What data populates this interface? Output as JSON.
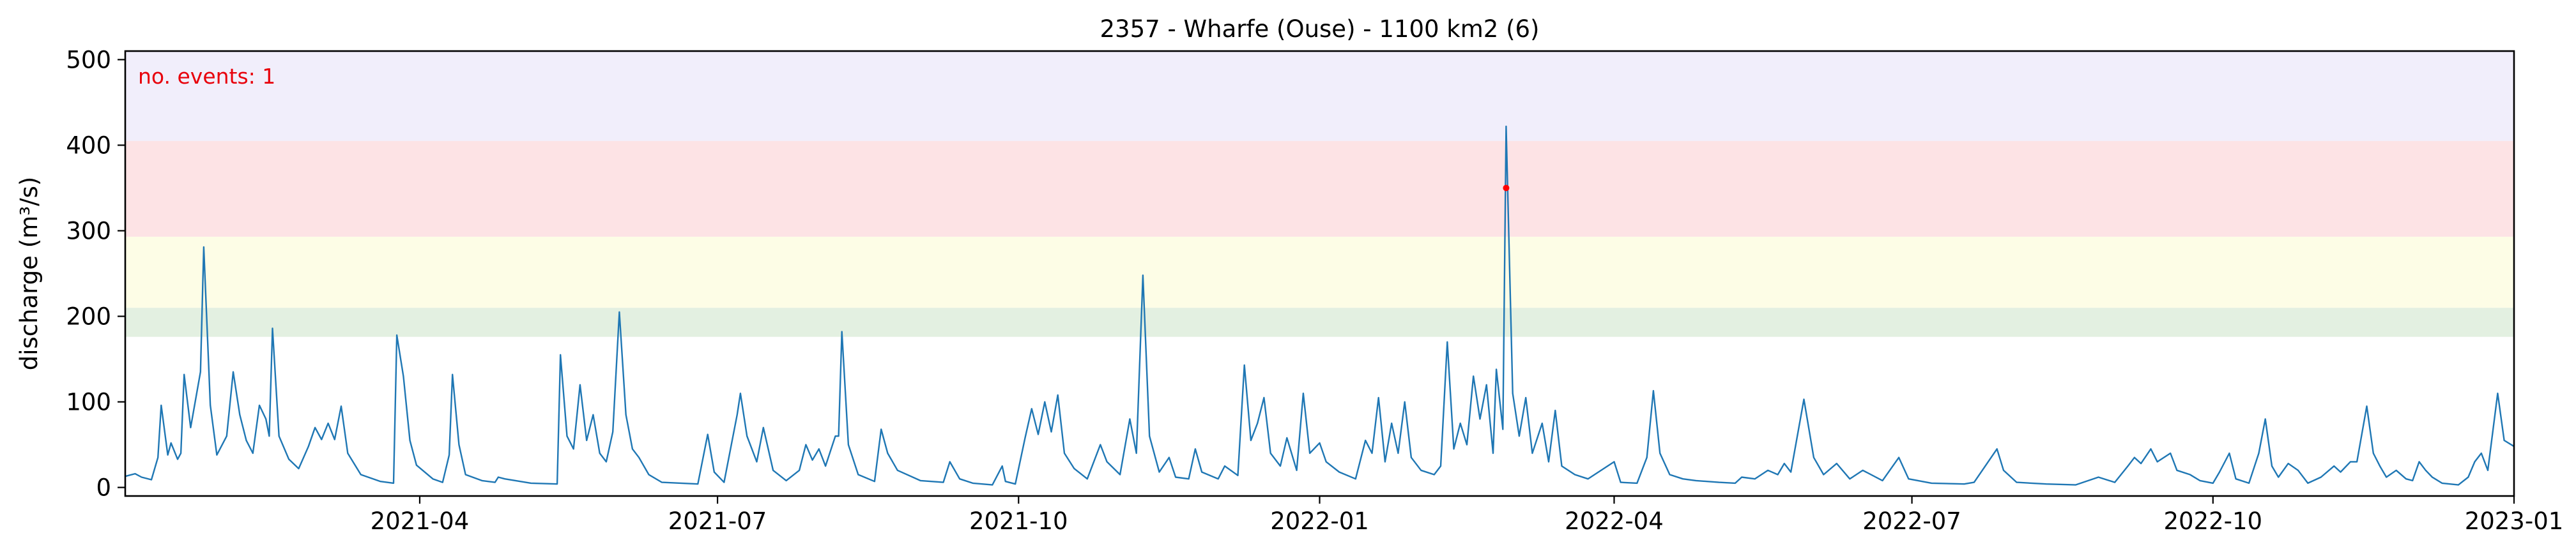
{
  "chart_data": {
    "type": "line",
    "title": "2357 - Wharfe (Ouse) - 1100 km2 (6)",
    "xlabel": "",
    "ylabel": "discharge (m³/s)",
    "xlim": [
      "2021-01-01",
      "2023-01-01"
    ],
    "ylim": [
      -10,
      510
    ],
    "x_ticks": [
      "2021-04",
      "2021-07",
      "2021-10",
      "2022-01",
      "2022-04",
      "2022-07",
      "2022-10",
      "2023-01"
    ],
    "y_ticks": [
      0,
      100,
      200,
      300,
      400,
      500
    ],
    "grid": false,
    "annotation": "no. events: 1",
    "bands": [
      {
        "from": 176,
        "to": 210,
        "color": "#e3f0e1"
      },
      {
        "from": 210,
        "to": 293,
        "color": "#fdfde6"
      },
      {
        "from": 293,
        "to": 405,
        "color": "#fde3e5"
      },
      {
        "from": 405,
        "to": 510,
        "color": "#f1eefb"
      }
    ],
    "series": [
      {
        "color": "#1f77b4",
        "points": [
          [
            "2021-01-01",
            13
          ],
          [
            "2021-01-04",
            16
          ],
          [
            "2021-01-06",
            12
          ],
          [
            "2021-01-09",
            9
          ],
          [
            "2021-01-11",
            35
          ],
          [
            "2021-01-12",
            96
          ],
          [
            "2021-01-14",
            38
          ],
          [
            "2021-01-15",
            52
          ],
          [
            "2021-01-17",
            33
          ],
          [
            "2021-01-18",
            40
          ],
          [
            "2021-01-19",
            132
          ],
          [
            "2021-01-21",
            70
          ],
          [
            "2021-01-24",
            135
          ],
          [
            "2021-01-25",
            281
          ],
          [
            "2021-01-27",
            96
          ],
          [
            "2021-01-29",
            38
          ],
          [
            "2021-02-01",
            60
          ],
          [
            "2021-02-03",
            135
          ],
          [
            "2021-02-05",
            85
          ],
          [
            "2021-02-07",
            55
          ],
          [
            "2021-02-09",
            40
          ],
          [
            "2021-02-11",
            96
          ],
          [
            "2021-02-13",
            80
          ],
          [
            "2021-02-14",
            60
          ],
          [
            "2021-02-15",
            186
          ],
          [
            "2021-02-17",
            60
          ],
          [
            "2021-02-20",
            33
          ],
          [
            "2021-02-23",
            22
          ],
          [
            "2021-02-26",
            48
          ],
          [
            "2021-02-28",
            70
          ],
          [
            "2021-03-02",
            56
          ],
          [
            "2021-03-04",
            75
          ],
          [
            "2021-03-06",
            56
          ],
          [
            "2021-03-08",
            95
          ],
          [
            "2021-03-10",
            40
          ],
          [
            "2021-03-14",
            15
          ],
          [
            "2021-03-20",
            7
          ],
          [
            "2021-03-24",
            5
          ],
          [
            "2021-03-25",
            178
          ],
          [
            "2021-03-27",
            130
          ],
          [
            "2021-03-29",
            55
          ],
          [
            "2021-03-31",
            26
          ],
          [
            "2021-04-05",
            10
          ],
          [
            "2021-04-08",
            6
          ],
          [
            "2021-04-10",
            38
          ],
          [
            "2021-04-11",
            132
          ],
          [
            "2021-04-13",
            50
          ],
          [
            "2021-04-15",
            15
          ],
          [
            "2021-04-20",
            8
          ],
          [
            "2021-04-24",
            6
          ],
          [
            "2021-04-25",
            12
          ],
          [
            "2021-04-27",
            10
          ],
          [
            "2021-05-05",
            5
          ],
          [
            "2021-05-13",
            4
          ],
          [
            "2021-05-14",
            155
          ],
          [
            "2021-05-16",
            60
          ],
          [
            "2021-05-18",
            45
          ],
          [
            "2021-05-20",
            120
          ],
          [
            "2021-05-22",
            55
          ],
          [
            "2021-05-24",
            85
          ],
          [
            "2021-05-26",
            40
          ],
          [
            "2021-05-28",
            30
          ],
          [
            "2021-05-30",
            65
          ],
          [
            "2021-06-01",
            205
          ],
          [
            "2021-06-03",
            85
          ],
          [
            "2021-06-05",
            45
          ],
          [
            "2021-06-07",
            35
          ],
          [
            "2021-06-10",
            15
          ],
          [
            "2021-06-14",
            6
          ],
          [
            "2021-06-25",
            4
          ],
          [
            "2021-06-28",
            62
          ],
          [
            "2021-06-30",
            18
          ],
          [
            "2021-07-03",
            6
          ],
          [
            "2021-07-07",
            85
          ],
          [
            "2021-07-08",
            110
          ],
          [
            "2021-07-10",
            60
          ],
          [
            "2021-07-13",
            30
          ],
          [
            "2021-07-15",
            70
          ],
          [
            "2021-07-18",
            20
          ],
          [
            "2021-07-22",
            8
          ],
          [
            "2021-07-26",
            20
          ],
          [
            "2021-07-28",
            50
          ],
          [
            "2021-07-30",
            32
          ],
          [
            "2021-08-01",
            45
          ],
          [
            "2021-08-03",
            25
          ],
          [
            "2021-08-06",
            60
          ],
          [
            "2021-08-07",
            60
          ],
          [
            "2021-08-08",
            182
          ],
          [
            "2021-08-10",
            50
          ],
          [
            "2021-08-13",
            15
          ],
          [
            "2021-08-18",
            7
          ],
          [
            "2021-08-20",
            68
          ],
          [
            "2021-08-22",
            40
          ],
          [
            "2021-08-25",
            20
          ],
          [
            "2021-09-01",
            8
          ],
          [
            "2021-09-08",
            6
          ],
          [
            "2021-09-10",
            30
          ],
          [
            "2021-09-13",
            10
          ],
          [
            "2021-09-17",
            5
          ],
          [
            "2021-09-23",
            3
          ],
          [
            "2021-09-26",
            25
          ],
          [
            "2021-09-27",
            7
          ],
          [
            "2021-09-30",
            4
          ],
          [
            "2021-10-03",
            58
          ],
          [
            "2021-10-05",
            92
          ],
          [
            "2021-10-07",
            62
          ],
          [
            "2021-10-09",
            100
          ],
          [
            "2021-10-11",
            65
          ],
          [
            "2021-10-13",
            108
          ],
          [
            "2021-10-15",
            40
          ],
          [
            "2021-10-18",
            22
          ],
          [
            "2021-10-22",
            10
          ],
          [
            "2021-10-26",
            50
          ],
          [
            "2021-10-28",
            30
          ],
          [
            "2021-11-01",
            15
          ],
          [
            "2021-11-04",
            80
          ],
          [
            "2021-11-06",
            40
          ],
          [
            "2021-11-08",
            248
          ],
          [
            "2021-11-10",
            60
          ],
          [
            "2021-11-13",
            18
          ],
          [
            "2021-11-16",
            35
          ],
          [
            "2021-11-18",
            12
          ],
          [
            "2021-11-22",
            10
          ],
          [
            "2021-11-24",
            45
          ],
          [
            "2021-11-26",
            18
          ],
          [
            "2021-12-01",
            10
          ],
          [
            "2021-12-03",
            25
          ],
          [
            "2021-12-07",
            14
          ],
          [
            "2021-12-09",
            143
          ],
          [
            "2021-12-11",
            55
          ],
          [
            "2021-12-13",
            75
          ],
          [
            "2021-12-15",
            105
          ],
          [
            "2021-12-17",
            40
          ],
          [
            "2021-12-20",
            25
          ],
          [
            "2021-12-22",
            58
          ],
          [
            "2021-12-25",
            20
          ],
          [
            "2021-12-27",
            110
          ],
          [
            "2021-12-29",
            40
          ],
          [
            "2022-01-01",
            52
          ],
          [
            "2022-01-03",
            30
          ],
          [
            "2022-01-07",
            18
          ],
          [
            "2022-01-12",
            10
          ],
          [
            "2022-01-15",
            55
          ],
          [
            "2022-01-17",
            40
          ],
          [
            "2022-01-19",
            105
          ],
          [
            "2022-01-21",
            30
          ],
          [
            "2022-01-23",
            75
          ],
          [
            "2022-01-25",
            40
          ],
          [
            "2022-01-27",
            100
          ],
          [
            "2022-01-29",
            35
          ],
          [
            "2022-02-01",
            20
          ],
          [
            "2022-02-05",
            15
          ],
          [
            "2022-02-07",
            25
          ],
          [
            "2022-02-09",
            170
          ],
          [
            "2022-02-11",
            45
          ],
          [
            "2022-02-13",
            75
          ],
          [
            "2022-02-15",
            50
          ],
          [
            "2022-02-17",
            130
          ],
          [
            "2022-02-19",
            80
          ],
          [
            "2022-02-21",
            120
          ],
          [
            "2022-02-23",
            40
          ],
          [
            "2022-02-24",
            138
          ],
          [
            "2022-02-26",
            68
          ],
          [
            "2022-02-27",
            422
          ],
          [
            "2022-03-01",
            110
          ],
          [
            "2022-03-03",
            60
          ],
          [
            "2022-03-05",
            105
          ],
          [
            "2022-03-07",
            40
          ],
          [
            "2022-03-10",
            75
          ],
          [
            "2022-03-12",
            30
          ],
          [
            "2022-03-14",
            90
          ],
          [
            "2022-03-16",
            25
          ],
          [
            "2022-03-20",
            15
          ],
          [
            "2022-03-24",
            10
          ],
          [
            "2022-04-01",
            30
          ],
          [
            "2022-04-03",
            6
          ],
          [
            "2022-04-08",
            5
          ],
          [
            "2022-04-11",
            35
          ],
          [
            "2022-04-13",
            113
          ],
          [
            "2022-04-15",
            40
          ],
          [
            "2022-04-18",
            15
          ],
          [
            "2022-04-22",
            10
          ],
          [
            "2022-04-26",
            8
          ],
          [
            "2022-05-03",
            6
          ],
          [
            "2022-05-08",
            5
          ],
          [
            "2022-05-10",
            12
          ],
          [
            "2022-05-14",
            10
          ],
          [
            "2022-05-18",
            20
          ],
          [
            "2022-05-21",
            15
          ],
          [
            "2022-05-23",
            28
          ],
          [
            "2022-05-25",
            18
          ],
          [
            "2022-05-29",
            103
          ],
          [
            "2022-06-01",
            35
          ],
          [
            "2022-06-04",
            15
          ],
          [
            "2022-06-08",
            28
          ],
          [
            "2022-06-12",
            10
          ],
          [
            "2022-06-16",
            20
          ],
          [
            "2022-06-22",
            8
          ],
          [
            "2022-06-27",
            35
          ],
          [
            "2022-06-30",
            10
          ],
          [
            "2022-07-07",
            5
          ],
          [
            "2022-07-17",
            4
          ],
          [
            "2022-07-20",
            6
          ],
          [
            "2022-07-27",
            45
          ],
          [
            "2022-07-29",
            20
          ],
          [
            "2022-08-02",
            6
          ],
          [
            "2022-08-11",
            4
          ],
          [
            "2022-08-20",
            3
          ],
          [
            "2022-08-27",
            12
          ],
          [
            "2022-09-01",
            6
          ],
          [
            "2022-09-05",
            25
          ],
          [
            "2022-09-07",
            35
          ],
          [
            "2022-09-09",
            28
          ],
          [
            "2022-09-12",
            45
          ],
          [
            "2022-09-14",
            30
          ],
          [
            "2022-09-18",
            40
          ],
          [
            "2022-09-20",
            20
          ],
          [
            "2022-09-24",
            15
          ],
          [
            "2022-09-27",
            8
          ],
          [
            "2022-10-01",
            5
          ],
          [
            "2022-10-03",
            18
          ],
          [
            "2022-10-06",
            40
          ],
          [
            "2022-10-08",
            10
          ],
          [
            "2022-10-12",
            5
          ],
          [
            "2022-10-15",
            40
          ],
          [
            "2022-10-17",
            80
          ],
          [
            "2022-10-19",
            25
          ],
          [
            "2022-10-21",
            12
          ],
          [
            "2022-10-24",
            28
          ],
          [
            "2022-10-27",
            20
          ],
          [
            "2022-10-30",
            5
          ],
          [
            "2022-11-03",
            12
          ],
          [
            "2022-11-07",
            25
          ],
          [
            "2022-11-09",
            18
          ],
          [
            "2022-11-12",
            30
          ],
          [
            "2022-11-14",
            30
          ],
          [
            "2022-11-17",
            95
          ],
          [
            "2022-11-19",
            40
          ],
          [
            "2022-11-21",
            25
          ],
          [
            "2022-11-23",
            12
          ],
          [
            "2022-11-26",
            20
          ],
          [
            "2022-11-29",
            10
          ],
          [
            "2022-12-01",
            8
          ],
          [
            "2022-12-03",
            30
          ],
          [
            "2022-12-05",
            20
          ],
          [
            "2022-12-07",
            12
          ],
          [
            "2022-12-10",
            5
          ],
          [
            "2022-12-15",
            3
          ],
          [
            "2022-12-18",
            12
          ],
          [
            "2022-12-20",
            30
          ],
          [
            "2022-12-22",
            40
          ],
          [
            "2022-12-24",
            20
          ],
          [
            "2022-12-27",
            110
          ],
          [
            "2022-12-29",
            55
          ],
          [
            "2023-01-01",
            48
          ]
        ]
      }
    ],
    "events": [
      {
        "x": "2022-02-27",
        "y": 350,
        "color": "#ff0000"
      }
    ]
  }
}
